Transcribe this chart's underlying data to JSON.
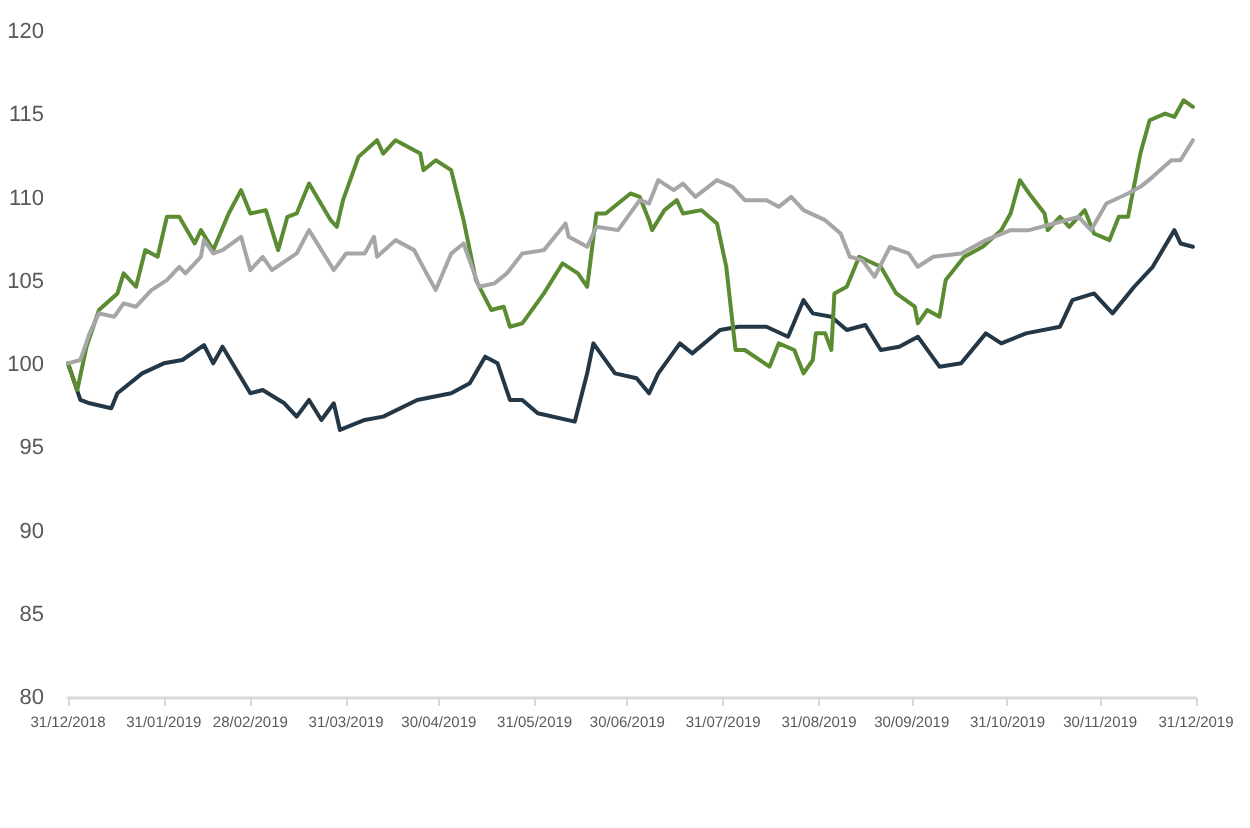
{
  "chart_data": {
    "type": "line",
    "xlim": [
      "2018-12-31",
      "2019-12-31"
    ],
    "xticks": [
      {
        "value": "2018-12-31",
        "label": "31/12/2018"
      },
      {
        "value": "2019-01-31",
        "label": "31/01/2019"
      },
      {
        "value": "2019-02-28",
        "label": "28/02/2019"
      },
      {
        "value": "2019-03-31",
        "label": "31/03/2019"
      },
      {
        "value": "2019-04-30",
        "label": "30/04/2019"
      },
      {
        "value": "2019-05-31",
        "label": "31/05/2019"
      },
      {
        "value": "2019-06-30",
        "label": "30/06/2019"
      },
      {
        "value": "2019-07-31",
        "label": "31/07/2019"
      },
      {
        "value": "2019-08-31",
        "label": "31/08/2019"
      },
      {
        "value": "2019-09-30",
        "label": "30/09/2019"
      },
      {
        "value": "2019-10-31",
        "label": "31/10/2019"
      },
      {
        "value": "2019-11-30",
        "label": "30/11/2019"
      },
      {
        "value": "2019-12-31",
        "label": "31/12/2019"
      }
    ],
    "ylim": [
      80,
      120
    ],
    "yticks": [
      80,
      85,
      90,
      95,
      100,
      105,
      110,
      115,
      120
    ],
    "grid": false,
    "marker": "none",
    "line_style": "solid",
    "series": [
      {
        "color": "#243746",
        "x": [
          "2018-12-31",
          "2019-01-04",
          "2019-01-07",
          "2019-01-14",
          "2019-01-16",
          "2019-01-24",
          "2019-01-31",
          "2019-02-06",
          "2019-02-13",
          "2019-02-16",
          "2019-02-19",
          "2019-02-28",
          "2019-03-04",
          "2019-03-11",
          "2019-03-15",
          "2019-03-19",
          "2019-03-23",
          "2019-03-27",
          "2019-03-29",
          "2019-04-06",
          "2019-04-12",
          "2019-04-23",
          "2019-05-04",
          "2019-05-10",
          "2019-05-15",
          "2019-05-19",
          "2019-05-23",
          "2019-05-27",
          "2019-06-01",
          "2019-06-13",
          "2019-06-17",
          "2019-06-19",
          "2019-06-26",
          "2019-07-03",
          "2019-07-07",
          "2019-07-10",
          "2019-07-17",
          "2019-07-21",
          "2019-07-30",
          "2019-08-05",
          "2019-08-14",
          "2019-08-21",
          "2019-08-26",
          "2019-08-29",
          "2019-09-04",
          "2019-09-09",
          "2019-09-15",
          "2019-09-20",
          "2019-09-26",
          "2019-10-02",
          "2019-10-09",
          "2019-10-16",
          "2019-10-24",
          "2019-10-29",
          "2019-11-06",
          "2019-11-17",
          "2019-11-21",
          "2019-11-28",
          "2019-12-04",
          "2019-12-11",
          "2019-12-17",
          "2019-12-24",
          "2019-12-26",
          "2019-12-30"
        ],
        "values": [
          100.1,
          97.9,
          97.7,
          97.4,
          98.3,
          99.5,
          100.1,
          100.3,
          101.2,
          100.1,
          101.1,
          98.3,
          98.5,
          97.7,
          96.9,
          97.9,
          96.7,
          97.7,
          96.1,
          96.7,
          96.9,
          97.9,
          98.3,
          98.9,
          100.5,
          100.1,
          97.9,
          97.9,
          97.1,
          96.6,
          99.5,
          101.3,
          99.5,
          99.2,
          98.3,
          99.5,
          101.3,
          100.7,
          102.1,
          102.3,
          102.3,
          101.7,
          103.9,
          103.1,
          102.9,
          102.1,
          102.4,
          100.9,
          101.1,
          101.7,
          99.9,
          100.1,
          101.9,
          101.3,
          101.9,
          102.3,
          103.9,
          104.3,
          103.1,
          104.7,
          105.9,
          108.1,
          107.3,
          107.1
        ]
      },
      {
        "color": "#5b8c32",
        "x": [
          "2018-12-31",
          "2019-01-03",
          "2019-01-06",
          "2019-01-10",
          "2019-01-16",
          "2019-01-18",
          "2019-01-22",
          "2019-01-25",
          "2019-01-29",
          "2019-02-01",
          "2019-02-05",
          "2019-02-10",
          "2019-02-12",
          "2019-02-16",
          "2019-02-21",
          "2019-02-25",
          "2019-02-28",
          "2019-03-05",
          "2019-03-09",
          "2019-03-12",
          "2019-03-15",
          "2019-03-19",
          "2019-03-26",
          "2019-03-28",
          "2019-03-30",
          "2019-04-04",
          "2019-04-10",
          "2019-04-12",
          "2019-04-16",
          "2019-04-24",
          "2019-04-25",
          "2019-04-29",
          "2019-05-04",
          "2019-05-08",
          "2019-05-12",
          "2019-05-17",
          "2019-05-21",
          "2019-05-23",
          "2019-05-27",
          "2019-06-03",
          "2019-06-09",
          "2019-06-14",
          "2019-06-17",
          "2019-06-20",
          "2019-06-23",
          "2019-06-27",
          "2019-07-01",
          "2019-07-04",
          "2019-07-07",
          "2019-07-08",
          "2019-07-12",
          "2019-07-16",
          "2019-07-18",
          "2019-07-24",
          "2019-07-29",
          "2019-08-01",
          "2019-08-04",
          "2019-08-07",
          "2019-08-15",
          "2019-08-18",
          "2019-08-23",
          "2019-08-26",
          "2019-08-29",
          "2019-08-30",
          "2019-09-02",
          "2019-09-04",
          "2019-09-05",
          "2019-09-09",
          "2019-09-13",
          "2019-09-20",
          "2019-09-25",
          "2019-10-01",
          "2019-10-02",
          "2019-10-05",
          "2019-10-09",
          "2019-10-11",
          "2019-10-17",
          "2019-10-23",
          "2019-10-29",
          "2019-11-01",
          "2019-11-04",
          "2019-11-07",
          "2019-11-12",
          "2019-11-13",
          "2019-11-17",
          "2019-11-20",
          "2019-11-25",
          "2019-11-28",
          "2019-12-03",
          "2019-12-06",
          "2019-12-09",
          "2019-12-13",
          "2019-12-16",
          "2019-12-21",
          "2019-12-24",
          "2019-12-27",
          "2019-12-30"
        ],
        "values": [
          100.1,
          98.5,
          101.1,
          103.3,
          104.3,
          105.5,
          104.7,
          106.9,
          106.5,
          108.9,
          108.9,
          107.3,
          108.1,
          106.9,
          109.1,
          110.5,
          109.1,
          109.3,
          106.9,
          108.9,
          109.1,
          110.9,
          108.7,
          108.3,
          109.9,
          112.5,
          113.5,
          112.7,
          113.5,
          112.7,
          111.7,
          112.3,
          111.7,
          108.7,
          105.1,
          103.3,
          103.5,
          102.3,
          102.5,
          104.3,
          106.1,
          105.5,
          104.7,
          109.1,
          109.1,
          109.7,
          110.3,
          110.1,
          108.7,
          108.1,
          109.3,
          109.9,
          109.1,
          109.3,
          108.5,
          105.9,
          100.9,
          100.9,
          99.9,
          101.3,
          100.9,
          99.5,
          100.3,
          101.9,
          101.9,
          100.9,
          104.3,
          104.7,
          106.5,
          105.9,
          104.3,
          103.5,
          102.5,
          103.3,
          102.9,
          105.1,
          106.5,
          107.1,
          108.1,
          109.1,
          111.1,
          110.3,
          109.1,
          108.1,
          108.9,
          108.3,
          109.3,
          107.9,
          107.5,
          108.9,
          108.9,
          112.7,
          114.7,
          115.1,
          114.9,
          115.9,
          115.5
        ]
      },
      {
        "color": "#a6a6a6",
        "x": [
          "2018-12-31",
          "2019-01-04",
          "2019-01-07",
          "2019-01-10",
          "2019-01-15",
          "2019-01-18",
          "2019-01-22",
          "2019-01-27",
          "2019-02-01",
          "2019-02-05",
          "2019-02-07",
          "2019-02-12",
          "2019-02-13",
          "2019-02-16",
          "2019-02-19",
          "2019-02-25",
          "2019-02-28",
          "2019-03-04",
          "2019-03-07",
          "2019-03-15",
          "2019-03-19",
          "2019-03-23",
          "2019-03-27",
          "2019-03-31",
          "2019-04-06",
          "2019-04-09",
          "2019-04-10",
          "2019-04-16",
          "2019-04-22",
          "2019-04-26",
          "2019-04-29",
          "2019-05-04",
          "2019-05-08",
          "2019-05-13",
          "2019-05-18",
          "2019-05-22",
          "2019-05-27",
          "2019-06-03",
          "2019-06-10",
          "2019-06-11",
          "2019-06-17",
          "2019-06-20",
          "2019-06-27",
          "2019-07-04",
          "2019-07-07",
          "2019-07-10",
          "2019-07-15",
          "2019-07-18",
          "2019-07-22",
          "2019-07-29",
          "2019-08-03",
          "2019-08-07",
          "2019-08-14",
          "2019-08-18",
          "2019-08-22",
          "2019-08-26",
          "2019-09-02",
          "2019-09-07",
          "2019-09-10",
          "2019-09-14",
          "2019-09-18",
          "2019-09-23",
          "2019-09-29",
          "2019-10-02",
          "2019-10-07",
          "2019-10-16",
          "2019-10-24",
          "2019-11-01",
          "2019-11-07",
          "2019-11-15",
          "2019-11-23",
          "2019-11-27",
          "2019-12-02",
          "2019-12-09",
          "2019-12-13",
          "2019-12-17",
          "2019-12-23",
          "2019-12-26",
          "2019-12-30"
        ],
        "values": [
          100.1,
          100.3,
          101.9,
          103.1,
          102.9,
          103.7,
          103.5,
          104.5,
          105.1,
          105.9,
          105.5,
          106.5,
          107.5,
          106.7,
          106.9,
          107.7,
          105.7,
          106.5,
          105.7,
          106.7,
          108.1,
          106.9,
          105.7,
          106.7,
          106.7,
          107.7,
          106.5,
          107.5,
          106.9,
          105.5,
          104.5,
          106.7,
          107.3,
          104.7,
          104.9,
          105.5,
          106.7,
          106.9,
          108.5,
          107.7,
          107.1,
          108.3,
          108.1,
          109.9,
          109.7,
          111.1,
          110.5,
          110.9,
          110.1,
          111.1,
          110.7,
          109.9,
          109.9,
          109.5,
          110.1,
          109.3,
          108.7,
          107.9,
          106.5,
          106.3,
          105.3,
          107.1,
          106.7,
          105.9,
          106.5,
          106.7,
          107.5,
          108.1,
          108.1,
          108.5,
          108.9,
          108.1,
          109.7,
          110.3,
          110.7,
          111.3,
          112.3,
          112.3,
          113.5
        ]
      }
    ]
  }
}
